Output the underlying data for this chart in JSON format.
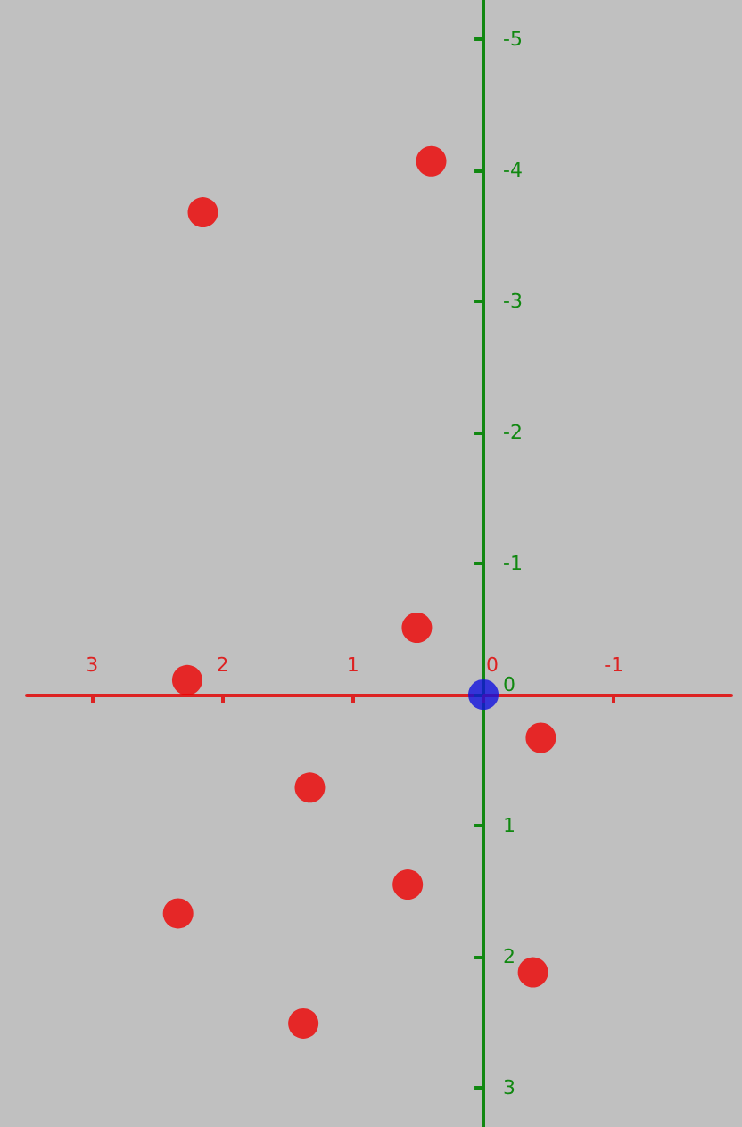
{
  "chart_data": {
    "type": "scatter",
    "series": [
      {
        "color": "#ee0000",
        "x": [
          0.4,
          2.15,
          0.51,
          2.27,
          -0.44,
          1.33,
          0.58,
          2.34,
          -0.38,
          1.38
        ],
        "values": [
          -4.07,
          -3.68,
          -0.51,
          -0.11,
          0.33,
          0.71,
          1.45,
          1.67,
          2.12,
          2.51
        ]
      },
      {
        "color": "#1010dd",
        "x": [
          0
        ],
        "values": [
          0
        ]
      }
    ],
    "xlim": [
      3.5,
      -1.9
    ],
    "ylim": [
      3.3,
      -5.3
    ],
    "xticks": [
      3,
      2,
      1,
      0,
      -1
    ],
    "yticks": [
      -5,
      -4,
      -3,
      -2,
      -1,
      0,
      1,
      2,
      3
    ],
    "grid": false,
    "marker": "circle"
  }
}
